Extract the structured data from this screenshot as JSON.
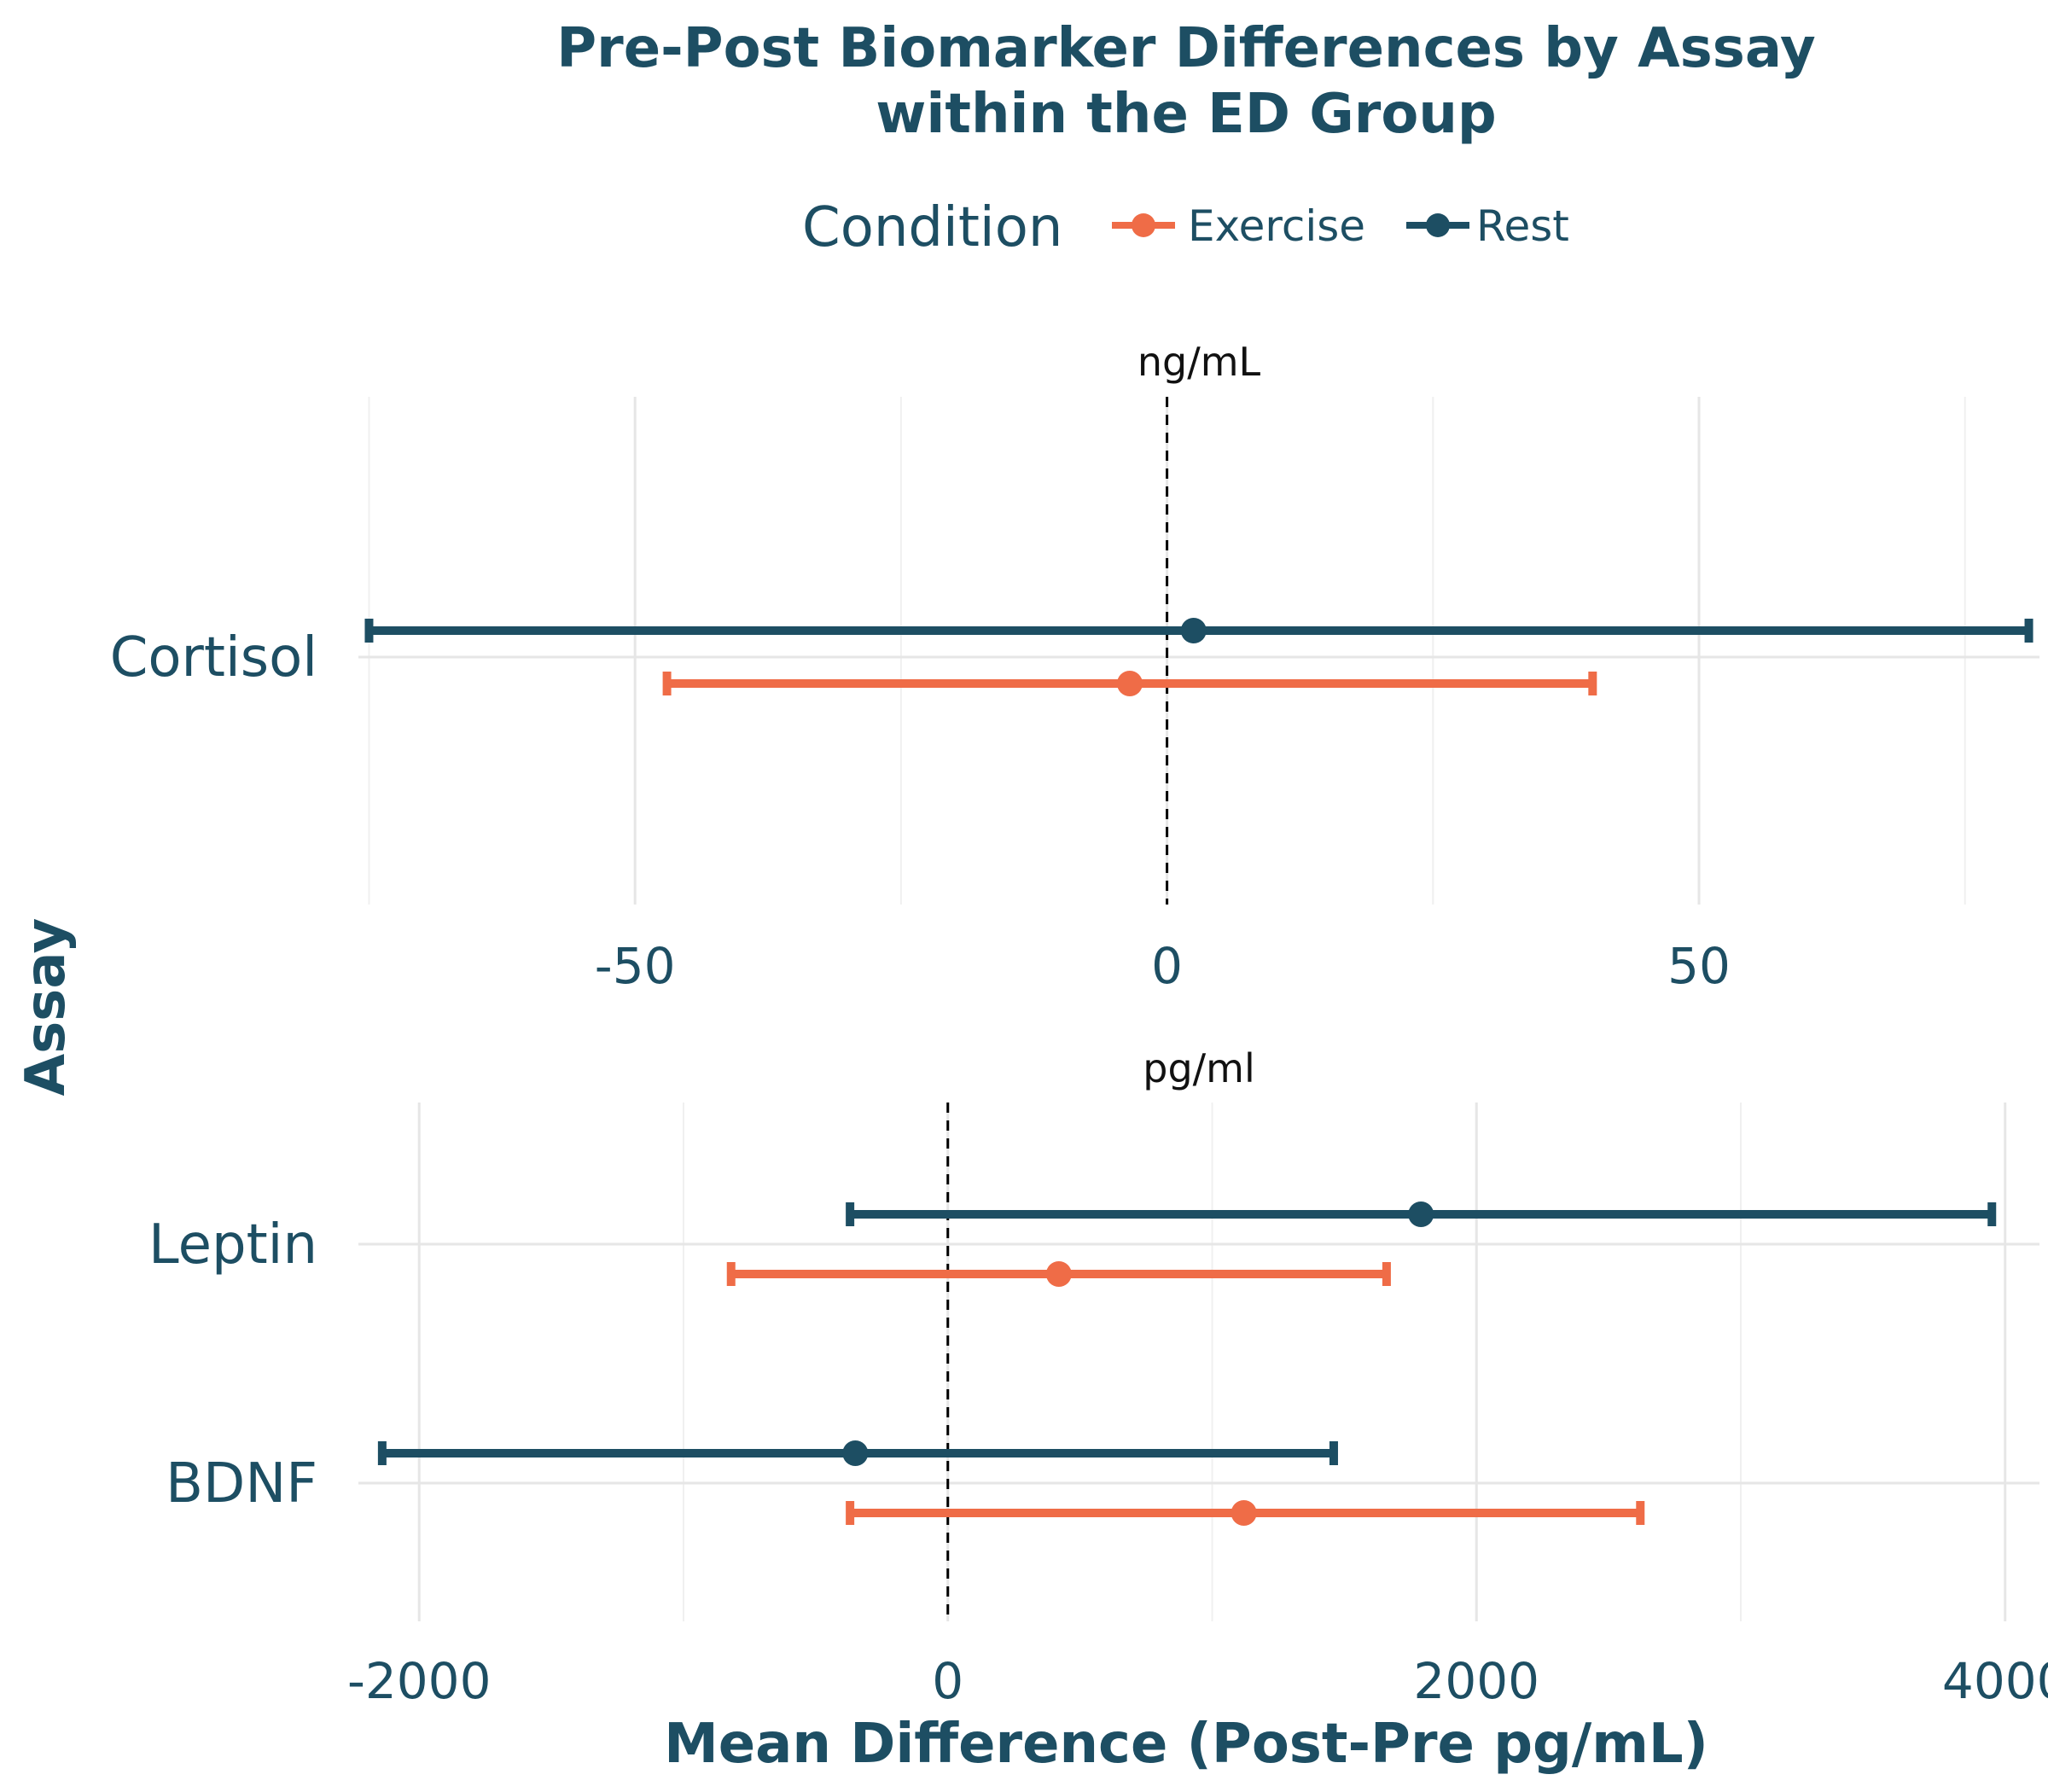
{
  "chart_data": {
    "type": "errorbar",
    "title": [
      "Pre-Post Biomarker Differences by Assay",
      "within the ED Group"
    ],
    "xlabel": "Mean Difference (Post-Pre pg/mL)",
    "ylabel": "Assay",
    "legend": {
      "title": "Condition",
      "placement": "top",
      "entries": [
        {
          "name": "Exercise",
          "color": "#ef6c47"
        },
        {
          "name": "Rest",
          "color": "#1d4e63"
        }
      ]
    },
    "grid": true,
    "zero_reference_line": 0,
    "facets": [
      {
        "label": "ng/mL",
        "xlim": [
          -76,
          82
        ],
        "xticks": [
          -50,
          0,
          50
        ],
        "xtick_labels": [
          "-50",
          "0",
          "50"
        ],
        "categories": [
          "Cortisol"
        ],
        "series": [
          {
            "name": "Rest",
            "points": [
              {
                "category": "Cortisol",
                "mean": 2.5,
                "lower": -75,
                "upper": 81
              }
            ]
          },
          {
            "name": "Exercise",
            "points": [
              {
                "category": "Cortisol",
                "mean": -3.5,
                "lower": -47,
                "upper": 40
              }
            ]
          }
        ]
      },
      {
        "label": "pg/ml",
        "xlim": [
          -2230,
          4130
        ],
        "xticks": [
          -2000,
          0,
          2000,
          4000
        ],
        "xtick_labels": [
          "-2000",
          "0",
          "2000",
          "4000"
        ],
        "categories": [
          "Leptin",
          "BDNF"
        ],
        "series": [
          {
            "name": "Rest",
            "points": [
              {
                "category": "Leptin",
                "mean": 1790,
                "lower": -370,
                "upper": 3950
              },
              {
                "category": "BDNF",
                "mean": -350,
                "lower": -2140,
                "upper": 1460
              }
            ]
          },
          {
            "name": "Exercise",
            "points": [
              {
                "category": "Leptin",
                "mean": 420,
                "lower": -820,
                "upper": 1660
              },
              {
                "category": "BDNF",
                "mean": 1120,
                "lower": -370,
                "upper": 2620
              }
            ]
          }
        ]
      }
    ]
  }
}
